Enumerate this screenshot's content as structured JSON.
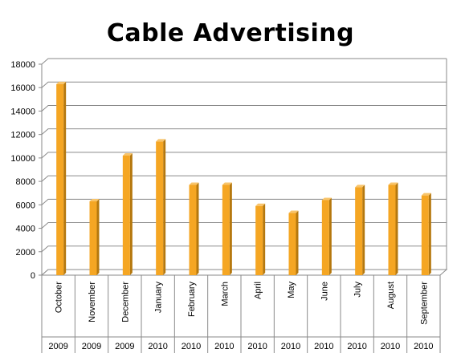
{
  "chart_data": {
    "type": "bar",
    "title": "Cable Advertising",
    "xlabel": "",
    "ylabel": "",
    "ylim": [
      0,
      18000
    ],
    "yticks": [
      0,
      2000,
      4000,
      6000,
      8000,
      10000,
      12000,
      14000,
      16000,
      18000
    ],
    "grid": true,
    "legend": "none",
    "categories": [
      {
        "month": "October",
        "year": "2009"
      },
      {
        "month": "November",
        "year": "2009"
      },
      {
        "month": "December",
        "year": "2009"
      },
      {
        "month": "January",
        "year": "2010"
      },
      {
        "month": "February",
        "year": "2010"
      },
      {
        "month": "March",
        "year": "2010"
      },
      {
        "month": "April",
        "year": "2010"
      },
      {
        "month": "May",
        "year": "2010"
      },
      {
        "month": "June",
        "year": "2010"
      },
      {
        "month": "July",
        "year": "2010"
      },
      {
        "month": "August",
        "year": "2010"
      },
      {
        "month": "September",
        "year": "2010"
      }
    ],
    "values": [
      16300,
      6300,
      10200,
      11400,
      7700,
      7700,
      5900,
      5300,
      6400,
      7500,
      7700,
      6800
    ],
    "bar_color": "#F5A623"
  }
}
